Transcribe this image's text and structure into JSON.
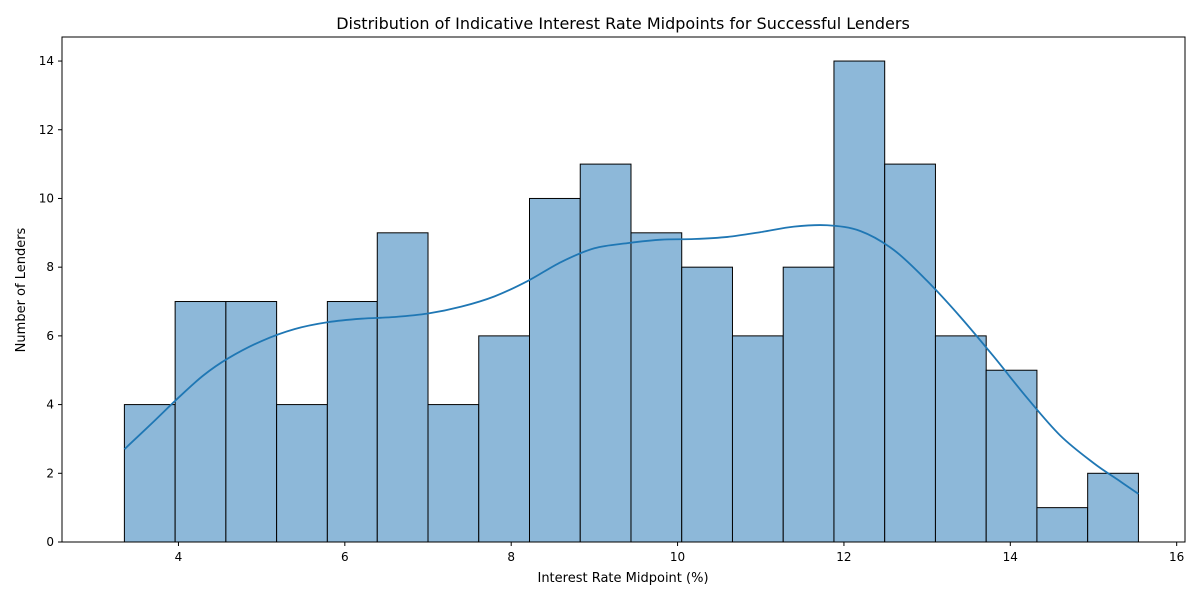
{
  "chart_data": {
    "type": "bar",
    "subtype": "histogram",
    "title": "Distribution of Indicative Interest Rate Midpoints for Successful Lenders",
    "xlabel": "Interest Rate Midpoint (%)",
    "ylabel": "Number of Lenders",
    "xlim": [
      2.6,
      16.1
    ],
    "ylim": [
      0,
      14.7
    ],
    "xticks": [
      4,
      6,
      8,
      10,
      12,
      14,
      16
    ],
    "yticks": [
      0,
      2,
      4,
      6,
      8,
      10,
      12,
      14
    ],
    "bin_edges": [
      3.35,
      3.96,
      4.57,
      5.18,
      5.79,
      6.39,
      7.0,
      7.61,
      8.22,
      8.83,
      9.44,
      10.05,
      10.66,
      11.27,
      11.88,
      12.49,
      13.1,
      13.71,
      14.32,
      14.93,
      15.54
    ],
    "values": [
      4,
      7,
      7,
      4,
      7,
      9,
      4,
      6,
      10,
      11,
      9,
      8,
      6,
      8,
      14,
      11,
      6,
      5,
      1,
      2
    ],
    "kde": {
      "x": [
        3.35,
        3.7,
        4.0,
        4.3,
        4.6,
        5.0,
        5.4,
        5.8,
        6.2,
        6.6,
        7.0,
        7.4,
        7.8,
        8.2,
        8.6,
        9.0,
        9.4,
        9.8,
        10.2,
        10.6,
        11.0,
        11.4,
        11.8,
        12.2,
        12.6,
        13.0,
        13.4,
        13.8,
        14.2,
        14.6,
        15.0,
        15.3,
        15.54
      ],
      "y": [
        2.7,
        3.5,
        4.2,
        4.85,
        5.35,
        5.85,
        6.2,
        6.4,
        6.5,
        6.55,
        6.65,
        6.85,
        7.15,
        7.6,
        8.15,
        8.55,
        8.7,
        8.8,
        8.82,
        8.88,
        9.02,
        9.18,
        9.22,
        9.05,
        8.5,
        7.6,
        6.55,
        5.4,
        4.2,
        3.1,
        2.3,
        1.8,
        1.4
      ]
    },
    "bar_color": "#8db8d9",
    "bar_edge_color": "#000000",
    "kde_color": "#1f77b4",
    "grid": false,
    "legend": "none"
  }
}
